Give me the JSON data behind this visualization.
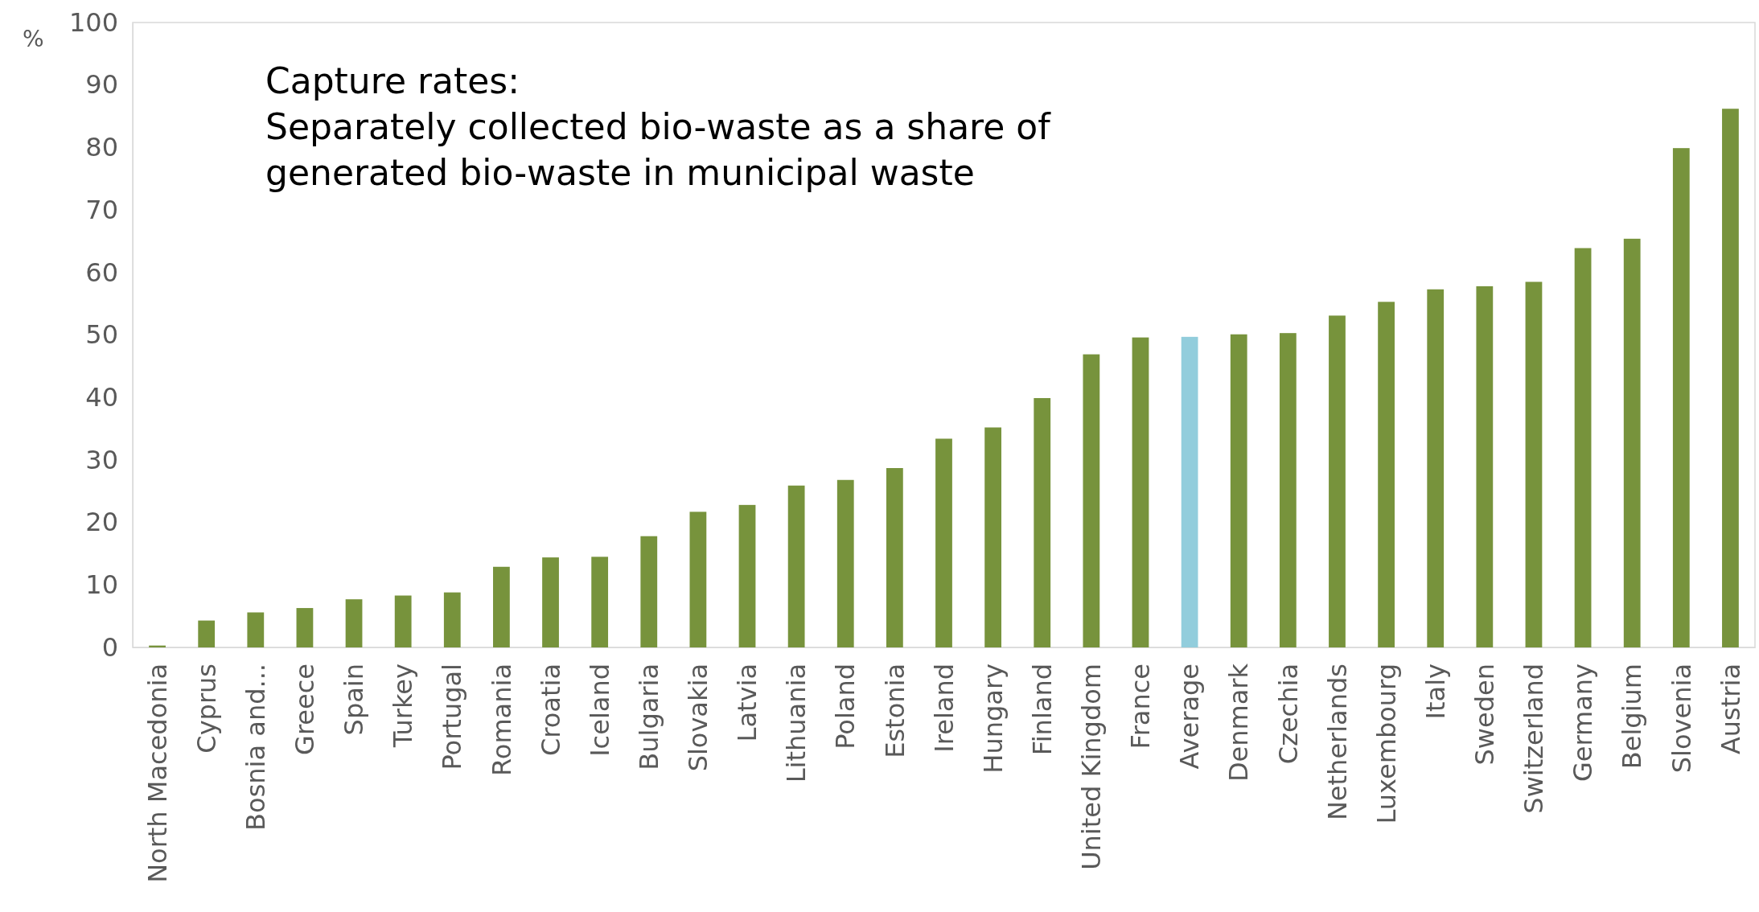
{
  "chart_data": {
    "type": "bar",
    "title": "Capture rates:\nSeparately collected bio-waste as a share of\ngenerated bio-waste in municipal waste",
    "ylabel": "%",
    "categories": [
      "North Macedonia",
      "Cyprus",
      "Bosnia and...",
      "Greece",
      "Spain",
      "Turkey",
      "Portugal",
      "Romania",
      "Croatia",
      "Iceland",
      "Bulgaria",
      "Slovakia",
      "Latvia",
      "Lithuania",
      "Poland",
      "Estonia",
      "Ireland",
      "Hungary",
      "Finland",
      "United Kingdom",
      "France",
      "Average",
      "Denmark",
      "Czechia",
      "Netherlands",
      "Luxembourg",
      "Italy",
      "Sweden",
      "Switzerland",
      "Germany",
      "Belgium",
      "Slovenia",
      "Austria"
    ],
    "values": [
      0.3,
      4.3,
      5.6,
      6.3,
      7.7,
      8.3,
      8.8,
      12.9,
      14.4,
      14.5,
      17.8,
      21.7,
      22.8,
      25.9,
      26.8,
      28.7,
      33.4,
      35.2,
      39.9,
      46.9,
      49.6,
      49.7,
      50.1,
      50.3,
      53.1,
      55.3,
      57.3,
      57.8,
      58.5,
      63.9,
      65.4,
      79.9,
      86.2
    ],
    "colors": [
      "#77933c",
      "#77933c",
      "#77933c",
      "#77933c",
      "#77933c",
      "#77933c",
      "#77933c",
      "#77933c",
      "#77933c",
      "#77933c",
      "#77933c",
      "#77933c",
      "#77933c",
      "#77933c",
      "#77933c",
      "#77933c",
      "#77933c",
      "#77933c",
      "#77933c",
      "#77933c",
      "#77933c",
      "#92cddc",
      "#77933c",
      "#77933c",
      "#77933c",
      "#77933c",
      "#77933c",
      "#77933c",
      "#77933c",
      "#77933c",
      "#77933c",
      "#77933c",
      "#77933c"
    ],
    "ylim": [
      0,
      100
    ],
    "yticks": [
      0,
      10,
      20,
      30,
      40,
      50,
      60,
      70,
      80,
      90,
      100
    ],
    "grid": false
  }
}
